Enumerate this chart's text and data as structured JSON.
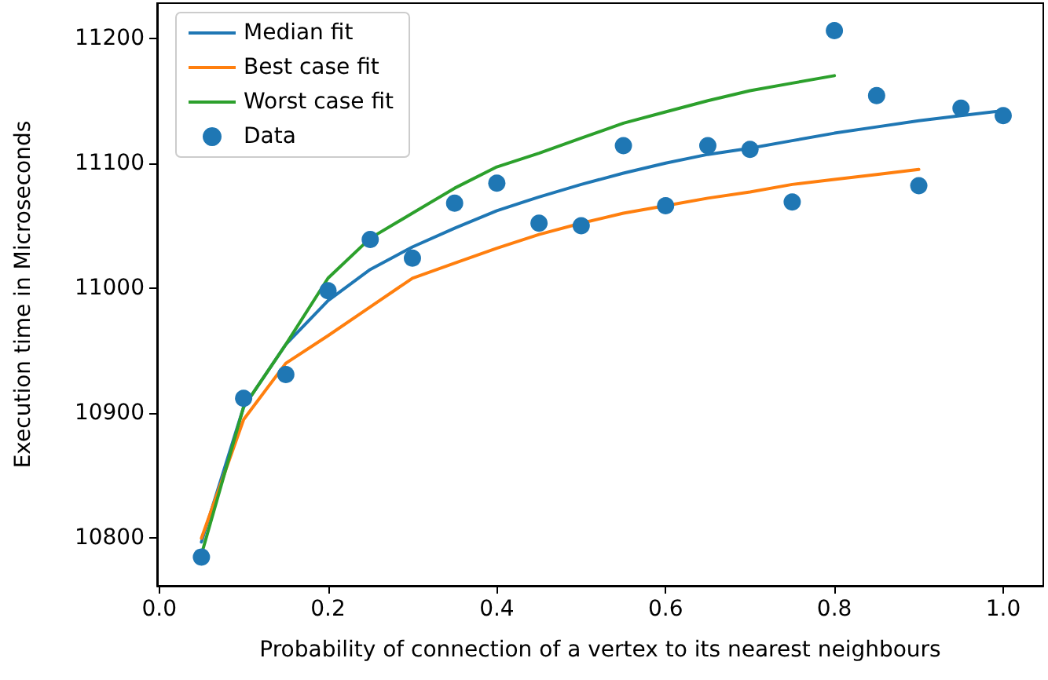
{
  "chart_data": {
    "type": "scatter",
    "xlabel": "Probability of connection of a vertex to its nearest neighbours",
    "ylabel": "Execution time in Microseconds",
    "xlim": [
      -0.0025,
      1.0475
    ],
    "ylim": [
      10762,
      11228
    ],
    "xticks": [
      {
        "value": 0,
        "label": "0.0"
      },
      {
        "value": 0.2,
        "label": "0.2"
      },
      {
        "value": 0.4,
        "label": "0.4"
      },
      {
        "value": 0.6,
        "label": "0.6"
      },
      {
        "value": 0.8,
        "label": "0.8"
      },
      {
        "value": 1,
        "label": "1.0"
      }
    ],
    "yticks": [
      10800,
      10900,
      11000,
      11100,
      11200
    ],
    "grid": false,
    "legend": "top left",
    "series": [
      {
        "name": "Median fit",
        "type": "line",
        "color": "#1f77b4",
        "marker": "none",
        "x": [
          0.05,
          0.1,
          0.15,
          0.2,
          0.25,
          0.3,
          0.35,
          0.4,
          0.45,
          0.5,
          0.55,
          0.6,
          0.65,
          0.7,
          0.75,
          0.8,
          0.85,
          0.9,
          0.95,
          1.0
        ],
        "values": [
          10797,
          10905,
          10955,
          10990,
          11015,
          11033,
          11048,
          11062,
          11073,
          11083,
          11092,
          11100,
          11107,
          11112,
          11118,
          11124,
          11129,
          11134,
          11138,
          11142
        ]
      },
      {
        "name": "Best case fit",
        "type": "line",
        "color": "#ff7f0e",
        "marker": "none",
        "x": [
          0.05,
          0.1,
          0.15,
          0.2,
          0.25,
          0.3,
          0.35,
          0.4,
          0.45,
          0.5,
          0.55,
          0.6,
          0.65,
          0.7,
          0.75,
          0.8,
          0.85,
          0.9
        ],
        "values": [
          10800,
          10895,
          10940,
          10962,
          10985,
          11008,
          11020,
          11032,
          11043,
          11052,
          11060,
          11066,
          11072,
          11077,
          11083,
          11087,
          11091,
          11095
        ]
      },
      {
        "name": "Worst case fit",
        "type": "line",
        "color": "#2ca02c",
        "marker": "none",
        "x": [
          0.05,
          0.1,
          0.15,
          0.2,
          0.25,
          0.3,
          0.35,
          0.4,
          0.45,
          0.5,
          0.55,
          0.6,
          0.65,
          0.7,
          0.75,
          0.8
        ],
        "values": [
          10787,
          10905,
          10955,
          11008,
          11040,
          11060,
          11080,
          11097,
          11108,
          11120,
          11132,
          11141,
          11150,
          11158,
          11164,
          11170
        ]
      },
      {
        "name": "Data",
        "type": "scatter",
        "color": "#1f77b4",
        "marker": "circle",
        "x": [
          0.05,
          0.1,
          0.15,
          0.2,
          0.25,
          0.3,
          0.35,
          0.4,
          0.45,
          0.5,
          0.55,
          0.6,
          0.65,
          0.7,
          0.75,
          0.8,
          0.85,
          0.9,
          0.95,
          1.0
        ],
        "values": [
          10785,
          10912,
          10931,
          10998,
          11039,
          11024,
          11068,
          11084,
          11052,
          11050,
          11114,
          11066,
          11114,
          11111,
          11069,
          11206,
          11154,
          11082,
          11144,
          11138
        ]
      }
    ]
  }
}
